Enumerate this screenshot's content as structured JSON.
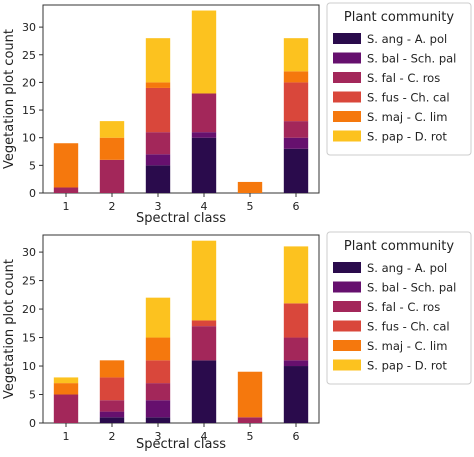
{
  "legend_title": "Plant community",
  "communities": [
    {
      "name": "S. ang - A. pol",
      "color": "#2a0b4c"
    },
    {
      "name": "S. bal - Sch. pal",
      "color": "#66106e"
    },
    {
      "name": "S. fal - C. ros",
      "color": "#a3275a"
    },
    {
      "name": "S. fus - Ch. cal",
      "color": "#d9473b"
    },
    {
      "name": "S. maj - C. lim",
      "color": "#f5780d"
    },
    {
      "name": "S. pap - D. rot",
      "color": "#fcc21f"
    }
  ],
  "chart_data": [
    {
      "type": "bar",
      "stacked": true,
      "xlabel": "Spectral class",
      "ylabel": "Vegetation plot count",
      "categories": [
        "1",
        "2",
        "3",
        "4",
        "5",
        "6"
      ],
      "ylim": [
        0,
        34
      ],
      "yticks": [
        0,
        5,
        10,
        15,
        20,
        25,
        30
      ],
      "series": [
        {
          "name": "S. ang - A. pol",
          "values": [
            0,
            0,
            5,
            10,
            0,
            8
          ]
        },
        {
          "name": "S. bal - Sch. pal",
          "values": [
            0,
            0,
            2,
            1,
            0,
            2
          ]
        },
        {
          "name": "S. fal - C. ros",
          "values": [
            1,
            6,
            4,
            7,
            0,
            3
          ]
        },
        {
          "name": "S. fus - Ch. cal",
          "values": [
            0,
            0,
            8,
            0,
            0,
            7
          ]
        },
        {
          "name": "S. maj - C. lim",
          "values": [
            8,
            4,
            1,
            0,
            2,
            2
          ]
        },
        {
          "name": "S. pap - D. rot",
          "values": [
            0,
            3,
            8,
            15,
            0,
            6
          ]
        }
      ]
    },
    {
      "type": "bar",
      "stacked": true,
      "xlabel": "Spectral class",
      "ylabel": "Vegetation plot count",
      "categories": [
        "1",
        "2",
        "3",
        "4",
        "5",
        "6"
      ],
      "ylim": [
        0,
        33
      ],
      "yticks": [
        0,
        5,
        10,
        15,
        20,
        25,
        30
      ],
      "series": [
        {
          "name": "S. ang - A. pol",
          "values": [
            0,
            1,
            1,
            11,
            0,
            10
          ]
        },
        {
          "name": "S. bal - Sch. pal",
          "values": [
            0,
            1,
            3,
            0,
            0,
            1
          ]
        },
        {
          "name": "S. fal - C. ros",
          "values": [
            5,
            2,
            3,
            6,
            1,
            4
          ]
        },
        {
          "name": "S. fus - Ch. cal",
          "values": [
            0,
            4,
            4,
            1,
            0,
            6
          ]
        },
        {
          "name": "S. maj - C. lim",
          "values": [
            2,
            3,
            4,
            0,
            8,
            0
          ]
        },
        {
          "name": "S. pap - D. rot",
          "values": [
            1,
            0,
            7,
            14,
            0,
            10
          ]
        }
      ]
    }
  ]
}
